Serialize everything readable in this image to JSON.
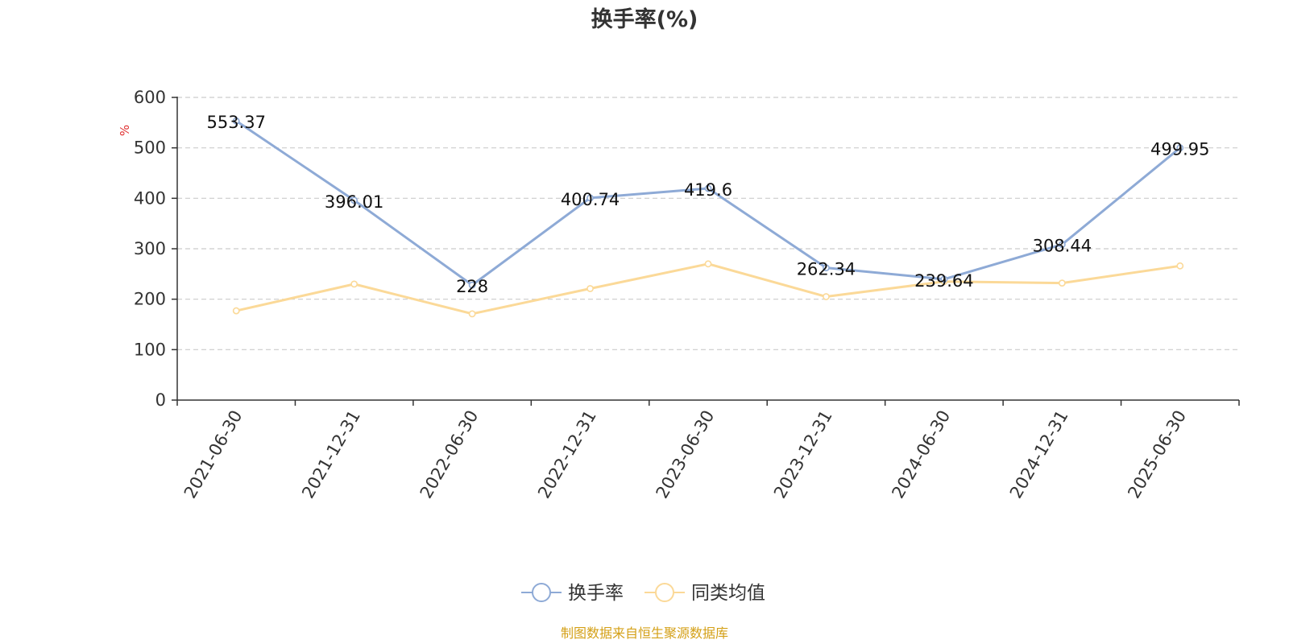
{
  "chart_data": {
    "type": "line",
    "title": "换手率(%)",
    "ylabel": "%",
    "categories": [
      "2021-06-30",
      "2021-12-31",
      "2022-06-30",
      "2022-12-31",
      "2023-06-30",
      "2023-12-31",
      "2024-06-30",
      "2024-12-31",
      "2025-06-30"
    ],
    "yticks": [
      "0",
      "100",
      "200",
      "300",
      "400",
      "500",
      "600"
    ],
    "ylim": [
      0,
      600
    ],
    "grid": true,
    "legend_position": "bottom",
    "series": [
      {
        "name": "换手率",
        "color": "#8eaad6",
        "values": [
          553.37,
          396.01,
          228,
          400.74,
          419.6,
          262.34,
          239.64,
          308.44,
          499.95
        ],
        "labels": [
          "553.37",
          "396.01",
          "228",
          "400.74",
          "419.6",
          "262.34",
          "239.64",
          "308.44",
          "499.95"
        ]
      },
      {
        "name": "同类均值",
        "color": "#fbd998",
        "values": [
          177,
          230,
          171,
          221,
          270,
          205,
          235,
          232,
          266
        ]
      }
    ]
  },
  "source_text": "制图数据来自恒生聚源数据库",
  "colors": {
    "unit_label": "#e03030",
    "source_text": "#d4a017",
    "axis": "#333333",
    "grid": "#cccccc"
  }
}
